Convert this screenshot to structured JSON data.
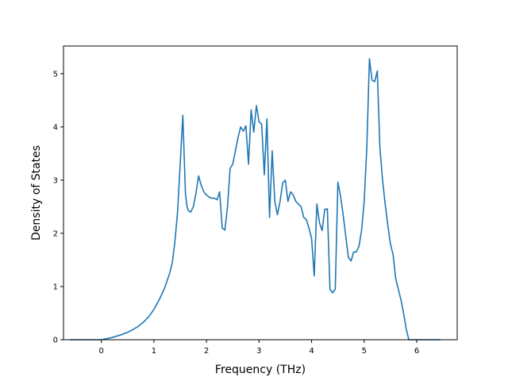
{
  "chart_data": {
    "type": "line",
    "title": "",
    "xlabel": "Frequency (THz)",
    "ylabel": "Density of States",
    "xlim": [
      -0.72,
      6.77
    ],
    "ylim": [
      0,
      5.52
    ],
    "x_ticks": [
      "0",
      "1",
      "2",
      "3",
      "4",
      "5",
      "6"
    ],
    "y_ticks": [
      "0",
      "1",
      "2",
      "3",
      "4",
      "5"
    ],
    "grid": false,
    "legend": "none",
    "series": [
      {
        "color": "#1f77b4",
        "x": [
          -0.6,
          -0.4,
          -0.2,
          0.0,
          0.1,
          0.2,
          0.3,
          0.4,
          0.5,
          0.6,
          0.7,
          0.8,
          0.9,
          1.0,
          1.1,
          1.2,
          1.3,
          1.35,
          1.4,
          1.45,
          1.5,
          1.55,
          1.6,
          1.63,
          1.66,
          1.7,
          1.75,
          1.8,
          1.85,
          1.9,
          1.95,
          2.0,
          2.05,
          2.1,
          2.15,
          2.2,
          2.25,
          2.3,
          2.35,
          2.4,
          2.45,
          2.5,
          2.55,
          2.6,
          2.65,
          2.7,
          2.75,
          2.8,
          2.85,
          2.9,
          2.95,
          3.0,
          3.05,
          3.1,
          3.15,
          3.2,
          3.25,
          3.3,
          3.35,
          3.4,
          3.45,
          3.5,
          3.55,
          3.6,
          3.65,
          3.7,
          3.75,
          3.8,
          3.85,
          3.9,
          3.95,
          4.0,
          4.05,
          4.1,
          4.15,
          4.2,
          4.25,
          4.3,
          4.35,
          4.4,
          4.45,
          4.5,
          4.55,
          4.6,
          4.65,
          4.7,
          4.75,
          4.8,
          4.85,
          4.9,
          4.95,
          5.0,
          5.05,
          5.1,
          5.15,
          5.2,
          5.25,
          5.3,
          5.35,
          5.4,
          5.45,
          5.5,
          5.55,
          5.6,
          5.65,
          5.7,
          5.75,
          5.8,
          5.85,
          5.9,
          6.0,
          6.2,
          6.45
        ],
        "y": [
          0.0,
          0.0,
          0.0,
          0.0,
          0.02,
          0.04,
          0.07,
          0.1,
          0.14,
          0.19,
          0.25,
          0.33,
          0.43,
          0.57,
          0.75,
          0.96,
          1.25,
          1.45,
          1.85,
          2.4,
          3.3,
          4.22,
          2.75,
          2.5,
          2.42,
          2.4,
          2.5,
          2.75,
          3.08,
          2.9,
          2.78,
          2.72,
          2.68,
          2.66,
          2.66,
          2.63,
          2.78,
          2.1,
          2.06,
          2.5,
          3.22,
          3.3,
          3.55,
          3.8,
          4.0,
          3.92,
          4.02,
          3.3,
          4.32,
          3.9,
          4.4,
          4.1,
          4.05,
          3.1,
          4.15,
          2.3,
          3.55,
          2.6,
          2.35,
          2.6,
          2.95,
          3.0,
          2.6,
          2.78,
          2.72,
          2.6,
          2.55,
          2.5,
          2.3,
          2.26,
          2.1,
          1.9,
          1.2,
          2.55,
          2.2,
          2.05,
          2.45,
          2.46,
          0.95,
          0.88,
          0.95,
          2.96,
          2.7,
          2.35,
          1.95,
          1.55,
          1.48,
          1.65,
          1.65,
          1.75,
          2.05,
          2.6,
          3.6,
          5.28,
          4.88,
          4.85,
          5.05,
          3.6,
          3.0,
          2.55,
          2.15,
          1.8,
          1.6,
          1.15,
          0.95,
          0.75,
          0.5,
          0.2,
          0.0,
          0.0,
          0.0,
          0.0,
          0.0
        ]
      }
    ]
  }
}
